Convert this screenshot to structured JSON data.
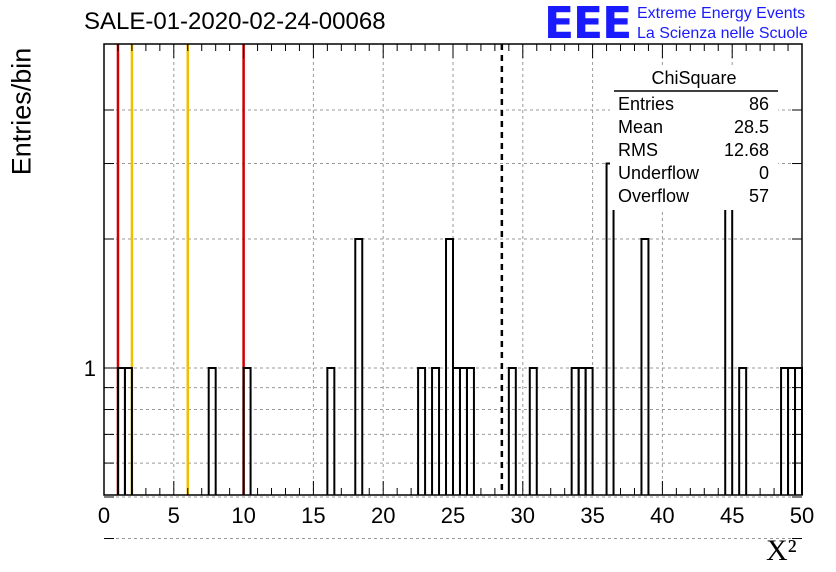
{
  "header": {
    "run_title": "SALE-01-2020-02-24-00068",
    "logo_text": "EEE",
    "logo_line1": "Extreme Energy Events",
    "logo_line2": "La Scienza nelle Scuole"
  },
  "stats_box": {
    "title": "ChiSquare",
    "rows": [
      {
        "label": "Entries",
        "value": "86"
      },
      {
        "label": "Mean",
        "value": "28.5"
      },
      {
        "label": "RMS",
        "value": "12.68"
      },
      {
        "label": "Underflow",
        "value": "0"
      },
      {
        "label": "Overflow",
        "value": "57"
      }
    ]
  },
  "chart_data": {
    "type": "bar",
    "title": "SALE-01-2020-02-24-00068",
    "xlabel": "X²",
    "ylabel": "Entries/bin",
    "xlim": [
      0,
      50
    ],
    "bin_width": 0.5,
    "y_scale": "log",
    "grid": true,
    "x_ticks": [
      "0",
      "5",
      "10",
      "15",
      "20",
      "25",
      "30",
      "35",
      "40",
      "45",
      "50"
    ],
    "y_ticks": [
      "1"
    ],
    "bins": [
      {
        "x": 1.0,
        "count": 1
      },
      {
        "x": 1.5,
        "count": 1
      },
      {
        "x": 7.5,
        "count": 1
      },
      {
        "x": 10.0,
        "count": 1
      },
      {
        "x": 16.0,
        "count": 1
      },
      {
        "x": 18.0,
        "count": 2
      },
      {
        "x": 22.5,
        "count": 1
      },
      {
        "x": 23.5,
        "count": 1
      },
      {
        "x": 24.5,
        "count": 2
      },
      {
        "x": 25.0,
        "count": 1
      },
      {
        "x": 25.5,
        "count": 1
      },
      {
        "x": 26.0,
        "count": 1
      },
      {
        "x": 29.0,
        "count": 1
      },
      {
        "x": 30.5,
        "count": 1
      },
      {
        "x": 33.5,
        "count": 1
      },
      {
        "x": 34.0,
        "count": 1
      },
      {
        "x": 34.5,
        "count": 1
      },
      {
        "x": 36.0,
        "count": 3
      },
      {
        "x": 38.5,
        "count": 2
      },
      {
        "x": 44.5,
        "count": 3
      },
      {
        "x": 45.5,
        "count": 1
      },
      {
        "x": 48.5,
        "count": 1
      },
      {
        "x": 49.0,
        "count": 1
      },
      {
        "x": 49.5,
        "count": 1
      }
    ],
    "reference_lines": [
      {
        "x": 1.0,
        "color": "#cc0000"
      },
      {
        "x": 2.0,
        "color": "#f0c000"
      },
      {
        "x": 6.0,
        "color": "#f0c000"
      },
      {
        "x": 10.0,
        "color": "#cc0000"
      },
      {
        "x": 28.5,
        "color": "#000000",
        "dashed": true
      }
    ]
  }
}
